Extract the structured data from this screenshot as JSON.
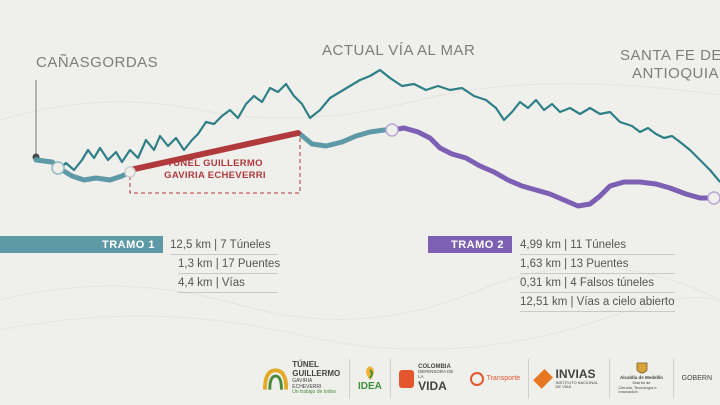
{
  "places": {
    "canasgordas": "CAÑASGORDAS",
    "via_al_mar": "ACTUAL VÍA AL MAR",
    "santa_fe_line1": "SANTA FE DE",
    "santa_fe_line2": "ANTIOQUIA"
  },
  "tunnel": {
    "line1": "TÚNEL GUILLERMO",
    "line2": "GAVIRIA ECHEVERRI"
  },
  "tramo1": {
    "label": "TRAMO 1",
    "color": "#5e9aa6",
    "stats": [
      "12,5 km | 7 Túneles",
      "1,3 km | 17 Puentes",
      "4,4 km | Vías"
    ]
  },
  "tramo2": {
    "label": "TRAMO 2",
    "color": "#7d5fb3",
    "stats": [
      "4,99 km | 11 Túneles",
      "1,63 km | 13 Puentes",
      "0,31 km | 4 Falsos túneles",
      "12,51 km | Vías a cielo abierto"
    ]
  },
  "colors": {
    "current_road": "#2f7f86",
    "tunnel": "#b0393c",
    "tramo1_route": "#5e9aa6",
    "tramo2_route": "#7d5fb3"
  },
  "logos": {
    "tunel": {
      "line1": "TÚNEL",
      "line2": "GUILLERMO",
      "line3": "GAVIRIA ECHEVERRI",
      "caption": "Un trabajo de todos"
    },
    "idea": "IDEA",
    "colombia": {
      "line1": "COLOMBIA",
      "line2": "DEFENSORA DE LA",
      "line3": "VIDA"
    },
    "transporte": "Transporte",
    "invias": {
      "name": "INVIAS",
      "sub": "INSTITUTO NACIONAL DE VÍAS"
    },
    "medellin": {
      "line1": "Alcaldía de Medellín",
      "line2": "Distrito de",
      "line3": "Ciencia, Tecnología e Innovación"
    },
    "gobernacion": "GOBERN"
  }
}
